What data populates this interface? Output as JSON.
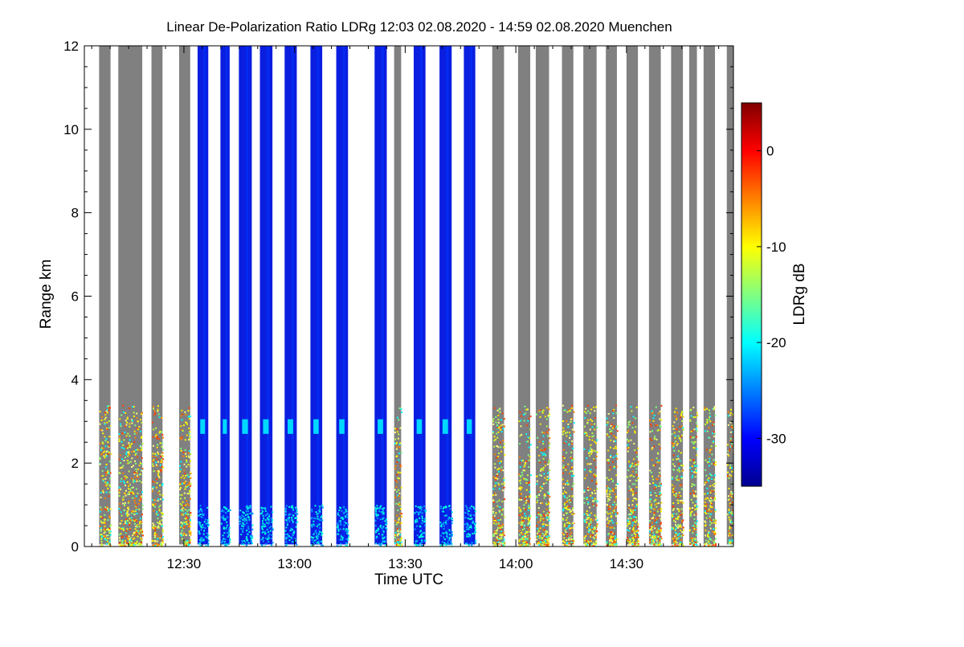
{
  "chart_data": {
    "type": "heatmap",
    "title": "Linear De-Polarization Ratio LDRg   12:03 02.08.2020 - 14:59 02.08.2020 Muenchen",
    "xlabel": "Time UTC",
    "ylabel": "Range km",
    "x_range_minutes_utc": [
      723,
      899
    ],
    "x_ticks": [
      {
        "minute": 750,
        "label": "12:30"
      },
      {
        "minute": 780,
        "label": "13:00"
      },
      {
        "minute": 810,
        "label": "13:30"
      },
      {
        "minute": 840,
        "label": "14:00"
      },
      {
        "minute": 870,
        "label": "14:30"
      }
    ],
    "y_range_km": [
      0,
      12
    ],
    "y_ticks": [
      0,
      2,
      4,
      6,
      8,
      10,
      12
    ],
    "colorbar": {
      "label": "LDRg dB",
      "range_db": [
        -35,
        5
      ],
      "ticks": [
        0,
        -10,
        -20,
        -30
      ],
      "colors": [
        "#00008f",
        "#0000ff",
        "#0080ff",
        "#00ffff",
        "#80ff80",
        "#ffff00",
        "#ff8000",
        "#ff0000",
        "#800000"
      ]
    },
    "no_signal_color": "#808080",
    "profiles": [
      {
        "start": 727.0,
        "end": 730.1,
        "kind": "gray"
      },
      {
        "start": 732.2,
        "end": 738.7,
        "kind": "gray"
      },
      {
        "start": 741.2,
        "end": 744.2,
        "kind": "gray"
      },
      {
        "start": 748.7,
        "end": 751.7,
        "kind": "gray"
      },
      {
        "start": 753.7,
        "end": 756.6,
        "kind": "blue"
      },
      {
        "start": 759.9,
        "end": 762.4,
        "kind": "blue"
      },
      {
        "start": 764.9,
        "end": 768.4,
        "kind": "blue"
      },
      {
        "start": 770.6,
        "end": 774.0,
        "kind": "blue"
      },
      {
        "start": 777.3,
        "end": 780.6,
        "kind": "blue"
      },
      {
        "start": 784.3,
        "end": 787.5,
        "kind": "blue"
      },
      {
        "start": 791.3,
        "end": 794.5,
        "kind": "blue"
      },
      {
        "start": 801.7,
        "end": 805.0,
        "kind": "blue"
      },
      {
        "start": 807.0,
        "end": 808.9,
        "kind": "gray"
      },
      {
        "start": 812.3,
        "end": 815.5,
        "kind": "blue"
      },
      {
        "start": 819.3,
        "end": 822.6,
        "kind": "blue"
      },
      {
        "start": 825.9,
        "end": 829.0,
        "kind": "blue"
      },
      {
        "start": 833.6,
        "end": 836.8,
        "kind": "gray"
      },
      {
        "start": 840.6,
        "end": 843.9,
        "kind": "gray"
      },
      {
        "start": 845.4,
        "end": 849.0,
        "kind": "gray"
      },
      {
        "start": 852.5,
        "end": 855.6,
        "kind": "gray"
      },
      {
        "start": 858.3,
        "end": 861.9,
        "kind": "gray"
      },
      {
        "start": 864.4,
        "end": 867.4,
        "kind": "gray"
      },
      {
        "start": 870.0,
        "end": 873.1,
        "kind": "gray"
      },
      {
        "start": 876.1,
        "end": 879.3,
        "kind": "gray"
      },
      {
        "start": 882.1,
        "end": 885.3,
        "kind": "gray"
      },
      {
        "start": 887.0,
        "end": 889.1,
        "kind": "gray"
      },
      {
        "start": 890.9,
        "end": 894.0,
        "kind": "gray"
      },
      {
        "start": 897.2,
        "end": 899.0,
        "kind": "gray"
      }
    ]
  }
}
